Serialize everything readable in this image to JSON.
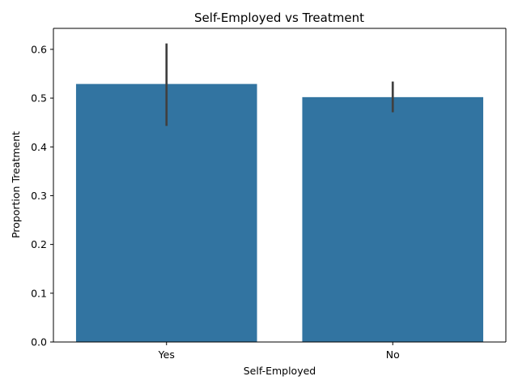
{
  "chart_data": {
    "type": "bar",
    "title": "Self-Employed vs Treatment",
    "xlabel": "Self-Employed",
    "ylabel": "Proportion Treatment",
    "categories": [
      "Yes",
      "No"
    ],
    "values": [
      0.529,
      0.502
    ],
    "error_low": [
      0.443,
      0.471
    ],
    "error_high": [
      0.612,
      0.534
    ],
    "ylim": [
      0,
      0.643
    ],
    "yticks": [
      0.0,
      0.1,
      0.2,
      0.3,
      0.4,
      0.5,
      0.6
    ],
    "ytick_labels": [
      "0.0",
      "0.1",
      "0.2",
      "0.3",
      "0.4",
      "0.5",
      "0.6"
    ],
    "grid": false,
    "bar_color": "#3274a1",
    "error_color": "#404040"
  }
}
